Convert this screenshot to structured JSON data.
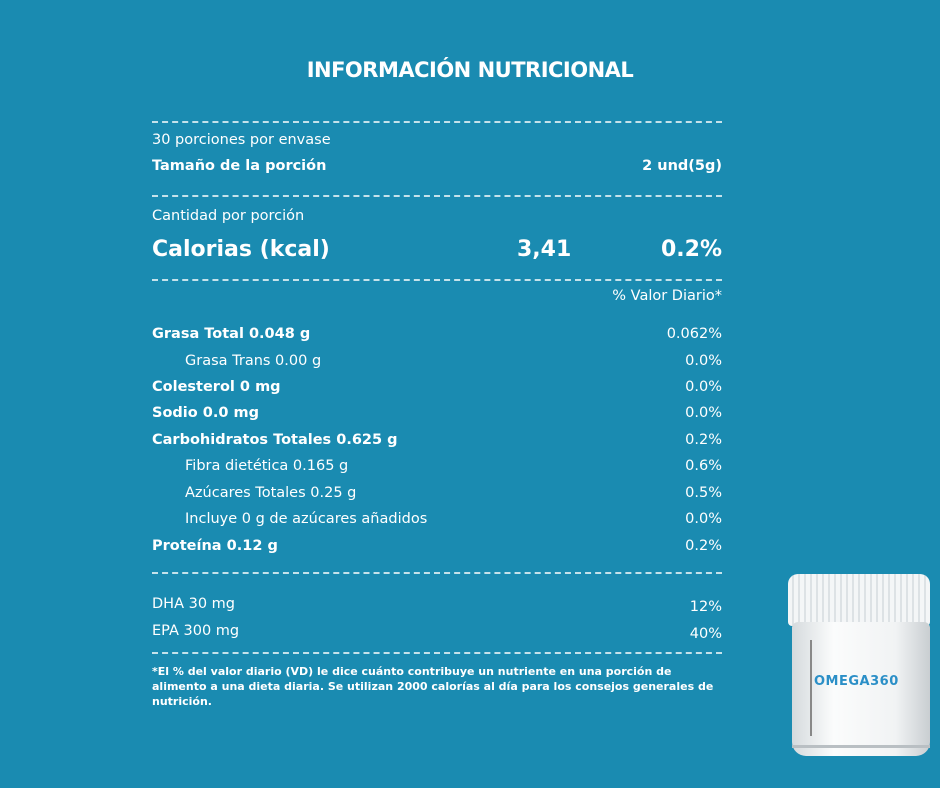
{
  "title": "INFORMACIÓN NUTRICIONAL",
  "serving": {
    "servings_per_container": "30 porciones por envase",
    "size_label": "Tamaño de la porción",
    "size_value": "2 und(5g)"
  },
  "calories": {
    "amount_label": "Cantidad por porción",
    "label": "Calorias (kcal)",
    "value": "3,41",
    "dv": "0.2%"
  },
  "dv_header": "% Valor Diario*",
  "nutrients": [
    {
      "label": "Grasa Total 0.048 g",
      "dv": "0.062%"
    },
    {
      "label": "Grasa Trans 0.00 g",
      "dv": "0.0%"
    },
    {
      "label": "Colesterol 0 mg",
      "dv": "0.0%"
    },
    {
      "label": "Sodio 0.0 mg",
      "dv": "0.0%"
    },
    {
      "label": "Carbohidratos Totales 0.625 g",
      "dv": "0.2%"
    },
    {
      "label": "Fibra dietética 0.165 g",
      "dv": "0.6%"
    },
    {
      "label": "Azúcares Totales 0.25 g",
      "dv": "0.5%"
    },
    {
      "label": "Incluye 0 g de azúcares añadidos",
      "dv": "0.0%"
    },
    {
      "label": "Proteína 0.12 g",
      "dv": "0.2%"
    }
  ],
  "extras": [
    {
      "label": "DHA 30 mg",
      "dv": "12%"
    },
    {
      "label": "EPA 300 mg",
      "dv": "40%"
    }
  ],
  "footnote": "*El % del valor diario (VD) le dice cuánto contribuye un nutriente en una porción de alimento a una dieta diaria. Se utilizan 2000 calorías al día para los consejos generales de nutrición.",
  "product": {
    "brand": "OMEGA360"
  },
  "colors": {
    "background": "#1a8bb1",
    "text": "#ffffff",
    "brand": "#2b8fc7"
  }
}
